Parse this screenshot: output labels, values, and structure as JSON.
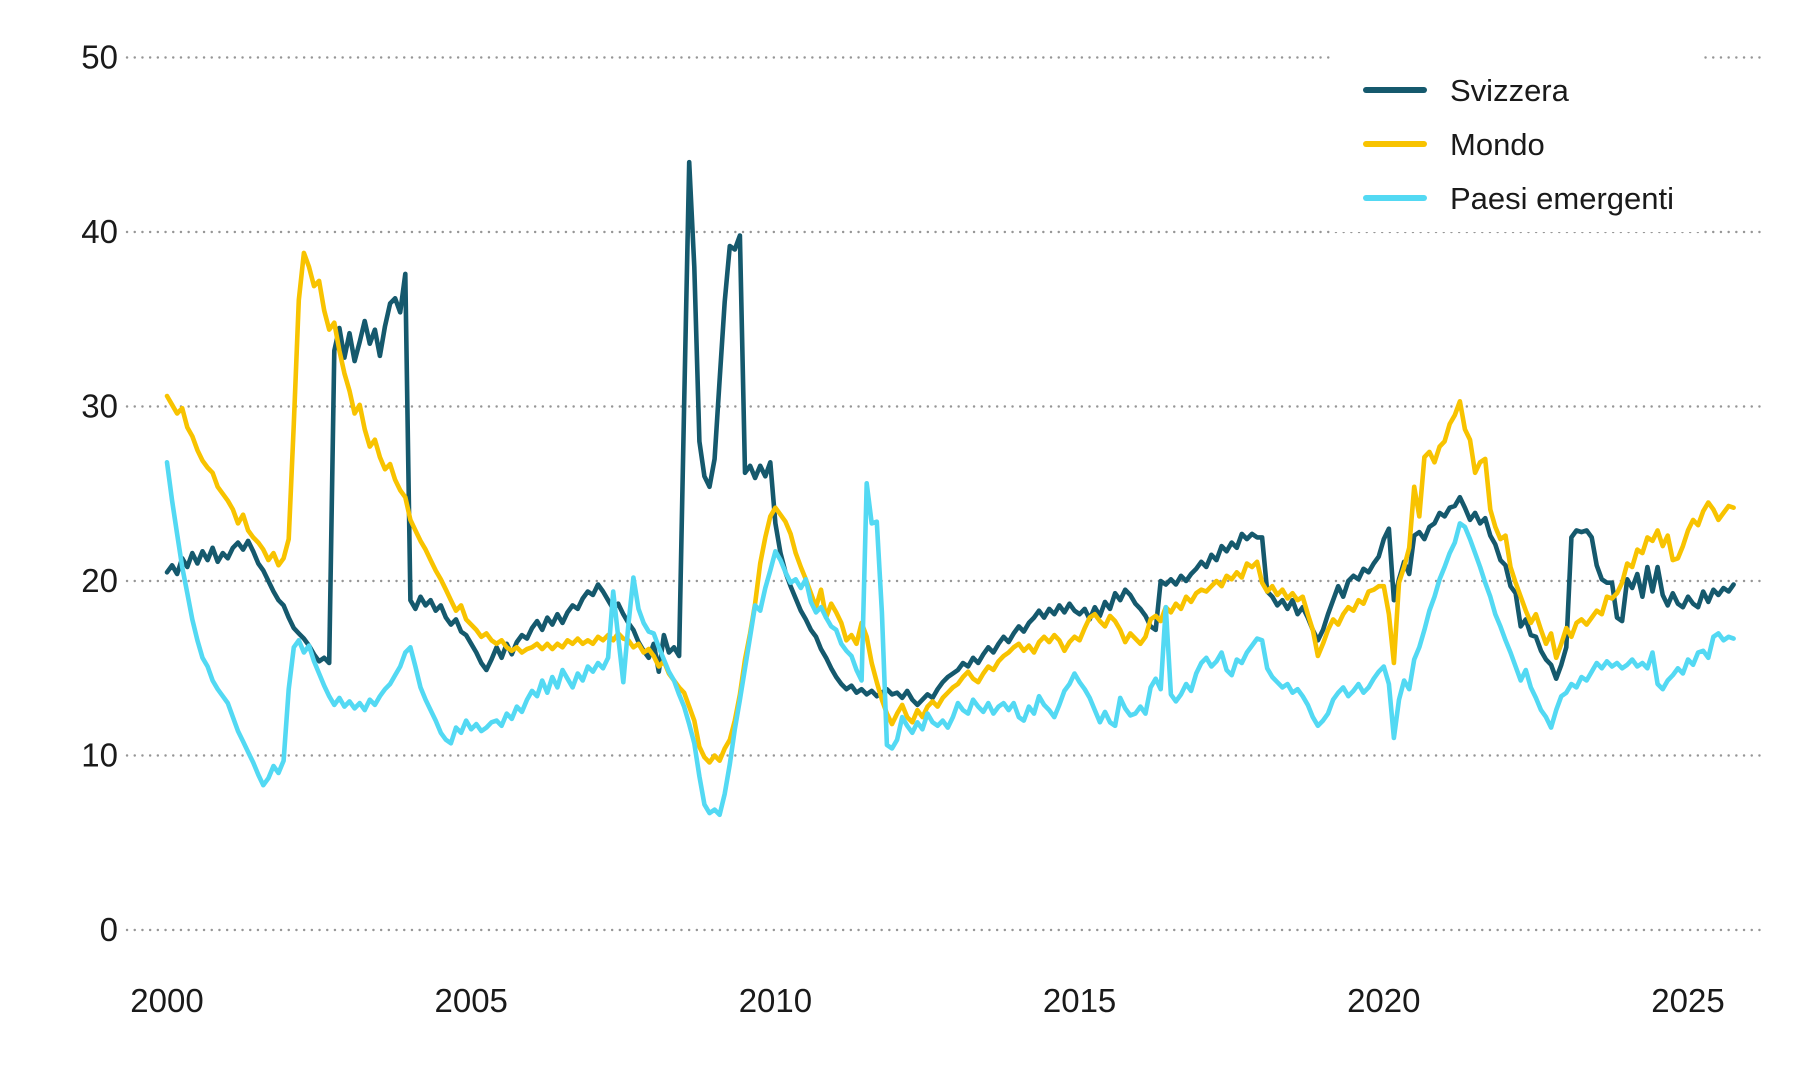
{
  "chart_data": {
    "type": "line",
    "title": "",
    "xlabel": "",
    "ylabel": "",
    "x_start_year": 2000,
    "points_per_year": 12,
    "x_ticks": [
      2000,
      2005,
      2010,
      2015,
      2020,
      2025
    ],
    "y_ticks": [
      0,
      10,
      20,
      30,
      40,
      50
    ],
    "ylim": [
      0,
      50
    ],
    "grid": "dotted-horizontal",
    "grid_color": "#969696",
    "text_color": "#1a1a1a",
    "legend_position": "top-right",
    "series": [
      {
        "name": "Svizzera",
        "color": "#15596d",
        "values": [
          20.5,
          20.9,
          20.4,
          21.3,
          20.8,
          21.6,
          21.0,
          21.7,
          21.2,
          21.9,
          21.1,
          21.6,
          21.3,
          21.9,
          22.2,
          21.8,
          22.3,
          21.7,
          21.0,
          20.6,
          20.0,
          19.4,
          18.9,
          18.6,
          17.9,
          17.3,
          17.0,
          16.7,
          16.3,
          15.8,
          15.4,
          15.6,
          15.3,
          33.2,
          34.5,
          32.8,
          34.2,
          32.6,
          33.7,
          34.9,
          33.6,
          34.4,
          32.9,
          34.6,
          35.9,
          36.2,
          35.4,
          37.6,
          18.9,
          18.4,
          19.1,
          18.6,
          18.9,
          18.3,
          18.6,
          17.9,
          17.5,
          17.8,
          17.1,
          16.9,
          16.4,
          15.9,
          15.3,
          14.9,
          15.5,
          16.2,
          15.6,
          16.4,
          15.8,
          16.5,
          16.9,
          16.7,
          17.3,
          17.7,
          17.2,
          17.9,
          17.5,
          18.1,
          17.6,
          18.2,
          18.6,
          18.4,
          19.0,
          19.4,
          19.2,
          19.8,
          19.4,
          18.9,
          18.4,
          18.7,
          18.1,
          17.6,
          17.2,
          16.5,
          16.0,
          15.6,
          16.4,
          14.8,
          16.9,
          15.9,
          16.2,
          15.7,
          30.0,
          44.0,
          38.0,
          28.0,
          26.0,
          25.4,
          27.0,
          31.5,
          36.0,
          39.2,
          39.0,
          39.8,
          26.2,
          26.6,
          25.9,
          26.6,
          26.0,
          26.8,
          23.3,
          21.6,
          20.5,
          19.7,
          19.0,
          18.3,
          17.8,
          17.2,
          16.8,
          16.1,
          15.6,
          15.0,
          14.5,
          14.1,
          13.8,
          14.0,
          13.6,
          13.8,
          13.5,
          13.7,
          13.4,
          13.6,
          13.8,
          13.5,
          13.6,
          13.3,
          13.7,
          13.2,
          12.9,
          13.2,
          13.5,
          13.3,
          13.8,
          14.2,
          14.5,
          14.7,
          14.9,
          15.3,
          15.1,
          15.6,
          15.3,
          15.8,
          16.2,
          15.9,
          16.4,
          16.8,
          16.5,
          17.0,
          17.4,
          17.1,
          17.6,
          17.9,
          18.3,
          17.9,
          18.4,
          18.1,
          18.6,
          18.2,
          18.7,
          18.3,
          18.1,
          18.4,
          17.8,
          18.5,
          18.0,
          18.8,
          18.4,
          19.3,
          18.9,
          19.5,
          19.2,
          18.7,
          18.4,
          18.0,
          17.4,
          17.2,
          20.0,
          19.8,
          20.1,
          19.8,
          20.3,
          20.0,
          20.4,
          20.7,
          21.1,
          20.8,
          21.5,
          21.2,
          22.0,
          21.7,
          22.2,
          21.9,
          22.7,
          22.4,
          22.7,
          22.5,
          22.5,
          19.4,
          19.1,
          18.6,
          18.9,
          18.4,
          18.9,
          18.1,
          18.5,
          17.9,
          17.2,
          16.6,
          17.2,
          18.1,
          18.9,
          19.7,
          19.1,
          20.0,
          20.3,
          20.1,
          20.7,
          20.5,
          21.0,
          21.4,
          22.4,
          23.0,
          18.9,
          20.1,
          21.1,
          20.4,
          22.6,
          22.8,
          22.4,
          23.1,
          23.3,
          23.9,
          23.7,
          24.2,
          24.3,
          24.8,
          24.2,
          23.5,
          23.9,
          23.3,
          23.6,
          22.6,
          22.1,
          21.2,
          20.9,
          19.7,
          19.3,
          17.4,
          17.8,
          16.9,
          16.8,
          16.0,
          15.5,
          15.2,
          14.4,
          15.2,
          16.2,
          22.5,
          22.9,
          22.8,
          22.9,
          22.5,
          20.9,
          20.1,
          19.9,
          19.9,
          17.9,
          17.7,
          20.1,
          19.6,
          20.4,
          19.1,
          20.8,
          19.4,
          20.8,
          19.2,
          18.6,
          19.3,
          18.7,
          18.5,
          19.1,
          18.7,
          18.5,
          19.4,
          18.8,
          19.5,
          19.2,
          19.6,
          19.4,
          19.8
        ]
      },
      {
        "name": "Mondo",
        "color": "#f8c300",
        "values": [
          30.6,
          30.1,
          29.6,
          29.9,
          28.8,
          28.3,
          27.5,
          26.9,
          26.5,
          26.2,
          25.4,
          25.0,
          24.6,
          24.1,
          23.3,
          23.8,
          22.9,
          22.5,
          22.2,
          21.8,
          21.2,
          21.6,
          20.9,
          21.3,
          22.4,
          29.0,
          36.1,
          38.8,
          38.0,
          36.9,
          37.2,
          35.5,
          34.4,
          34.8,
          33.2,
          31.9,
          30.9,
          29.6,
          30.1,
          28.7,
          27.7,
          28.1,
          27.1,
          26.4,
          26.7,
          25.8,
          25.2,
          24.8,
          23.5,
          22.9,
          22.3,
          21.8,
          21.2,
          20.6,
          20.1,
          19.5,
          18.9,
          18.3,
          18.6,
          17.8,
          17.5,
          17.2,
          16.8,
          17.0,
          16.6,
          16.4,
          16.6,
          16.2,
          16.0,
          16.2,
          15.9,
          16.1,
          16.2,
          16.4,
          16.1,
          16.4,
          16.1,
          16.4,
          16.2,
          16.6,
          16.4,
          16.7,
          16.4,
          16.6,
          16.4,
          16.8,
          16.6,
          16.9,
          16.6,
          17.0,
          16.7,
          16.6,
          16.2,
          16.4,
          15.9,
          16.1,
          15.7,
          15.1,
          15.4,
          14.7,
          14.3,
          13.9,
          13.6,
          12.8,
          12.0,
          10.5,
          9.9,
          9.6,
          10.0,
          9.7,
          10.4,
          10.9,
          12.0,
          13.5,
          15.5,
          17.0,
          18.7,
          21.0,
          22.5,
          23.7,
          24.2,
          23.8,
          23.4,
          22.7,
          21.6,
          20.8,
          20.1,
          19.3,
          18.5,
          19.5,
          17.9,
          18.7,
          18.2,
          17.6,
          16.6,
          16.9,
          16.4,
          17.6,
          16.8,
          15.3,
          14.2,
          13.2,
          12.4,
          11.8,
          12.4,
          12.9,
          12.2,
          11.9,
          12.6,
          12.2,
          12.8,
          13.1,
          12.8,
          13.3,
          13.6,
          13.9,
          14.1,
          14.5,
          14.8,
          14.4,
          14.2,
          14.7,
          15.1,
          14.9,
          15.4,
          15.7,
          15.9,
          16.2,
          16.4,
          16.0,
          16.3,
          15.9,
          16.5,
          16.8,
          16.5,
          16.9,
          16.6,
          16.0,
          16.5,
          16.8,
          16.6,
          17.3,
          17.9,
          18.1,
          17.7,
          17.4,
          18.0,
          17.7,
          17.2,
          16.5,
          17.0,
          16.7,
          16.4,
          16.8,
          17.8,
          18.0,
          17.7,
          18.5,
          18.2,
          18.7,
          18.4,
          19.1,
          18.8,
          19.3,
          19.5,
          19.4,
          19.7,
          20.0,
          19.7,
          20.3,
          20.1,
          20.5,
          20.2,
          21.0,
          20.8,
          21.1,
          19.9,
          19.4,
          19.7,
          19.2,
          19.5,
          19.0,
          19.3,
          18.9,
          19.1,
          18.1,
          17.2,
          15.7,
          16.4,
          17.2,
          17.8,
          17.5,
          18.1,
          18.5,
          18.3,
          18.9,
          18.7,
          19.4,
          19.5,
          19.7,
          19.7,
          18.1,
          15.3,
          19.9,
          20.8,
          21.9,
          25.4,
          23.7,
          27.1,
          27.4,
          26.8,
          27.7,
          28.0,
          29.0,
          29.5,
          30.3,
          28.7,
          28.1,
          26.2,
          26.8,
          27.0,
          24.1,
          23.1,
          22.4,
          22.6,
          20.8,
          19.9,
          19.1,
          18.3,
          17.6,
          18.1,
          17.2,
          16.4,
          17.0,
          15.6,
          16.4,
          17.3,
          16.8,
          17.6,
          17.8,
          17.5,
          17.9,
          18.3,
          18.1,
          19.1,
          19.0,
          19.3,
          19.9,
          21.0,
          20.8,
          21.8,
          21.6,
          22.5,
          22.3,
          22.9,
          22.0,
          22.6,
          21.2,
          21.3,
          22.0,
          22.9,
          23.5,
          23.2,
          24.0,
          24.5,
          24.1,
          23.5,
          23.9,
          24.3,
          24.2
        ]
      },
      {
        "name": "Paesi emergenti",
        "color": "#53d9f3",
        "values": [
          26.8,
          24.6,
          22.7,
          20.8,
          19.3,
          17.8,
          16.6,
          15.6,
          15.1,
          14.3,
          13.8,
          13.4,
          13.0,
          12.2,
          11.4,
          10.8,
          10.2,
          9.6,
          8.9,
          8.3,
          8.7,
          9.4,
          9.0,
          9.7,
          13.8,
          16.2,
          16.6,
          15.9,
          16.3,
          15.4,
          14.7,
          14.0,
          13.4,
          12.9,
          13.3,
          12.8,
          13.1,
          12.7,
          13.0,
          12.6,
          13.2,
          12.9,
          13.4,
          13.8,
          14.1,
          14.6,
          15.1,
          15.9,
          16.2,
          15.1,
          13.9,
          13.2,
          12.6,
          12.0,
          11.3,
          10.9,
          10.7,
          11.6,
          11.3,
          12.0,
          11.5,
          11.8,
          11.4,
          11.6,
          11.9,
          12.0,
          11.7,
          12.4,
          12.1,
          12.8,
          12.5,
          13.2,
          13.7,
          13.4,
          14.3,
          13.6,
          14.5,
          13.9,
          14.9,
          14.4,
          13.9,
          14.7,
          14.3,
          15.1,
          14.8,
          15.3,
          15.0,
          15.6,
          19.4,
          16.8,
          14.2,
          17.5,
          20.2,
          18.4,
          17.6,
          17.1,
          17.0,
          16.2,
          15.5,
          14.8,
          14.3,
          13.5,
          12.8,
          11.8,
          10.7,
          8.8,
          7.2,
          6.7,
          6.9,
          6.6,
          7.8,
          9.5,
          11.5,
          13.2,
          15.0,
          16.8,
          18.6,
          18.3,
          19.6,
          20.6,
          21.7,
          21.2,
          20.5,
          19.9,
          20.1,
          19.6,
          20.1,
          18.8,
          18.2,
          18.5,
          17.9,
          17.4,
          17.2,
          16.4,
          16.0,
          15.7,
          14.9,
          14.3,
          25.6,
          23.3,
          23.4,
          18.2,
          10.6,
          10.4,
          10.9,
          12.2,
          11.7,
          11.3,
          11.9,
          11.5,
          12.4,
          11.9,
          11.7,
          12.0,
          11.6,
          12.2,
          13.0,
          12.6,
          12.4,
          13.2,
          12.8,
          12.5,
          13.0,
          12.4,
          12.8,
          13.0,
          12.6,
          13.0,
          12.2,
          12.0,
          12.8,
          12.4,
          13.4,
          12.9,
          12.6,
          12.2,
          12.9,
          13.7,
          14.1,
          14.7,
          14.2,
          13.8,
          13.3,
          12.6,
          11.9,
          12.5,
          11.9,
          11.7,
          13.3,
          12.7,
          12.3,
          12.4,
          12.8,
          12.4,
          13.9,
          14.4,
          13.8,
          18.5,
          13.5,
          13.1,
          13.5,
          14.1,
          13.7,
          14.7,
          15.3,
          15.6,
          15.1,
          15.4,
          15.9,
          14.9,
          14.6,
          15.5,
          15.3,
          15.9,
          16.3,
          16.7,
          16.6,
          15.0,
          14.5,
          14.2,
          13.9,
          14.1,
          13.6,
          13.8,
          13.4,
          12.9,
          12.2,
          11.7,
          12.0,
          12.4,
          13.2,
          13.6,
          13.9,
          13.4,
          13.7,
          14.1,
          13.6,
          13.9,
          14.4,
          14.8,
          15.1,
          14.1,
          11.0,
          13.2,
          14.3,
          13.8,
          15.5,
          16.2,
          17.2,
          18.3,
          19.1,
          20.1,
          20.8,
          21.6,
          22.2,
          23.3,
          23.1,
          22.4,
          21.6,
          20.8,
          19.9,
          19.1,
          18.1,
          17.4,
          16.6,
          15.9,
          15.1,
          14.3,
          14.9,
          13.9,
          13.3,
          12.6,
          12.2,
          11.6,
          12.6,
          13.4,
          13.6,
          14.1,
          13.9,
          14.5,
          14.3,
          14.8,
          15.3,
          15.0,
          15.4,
          15.1,
          15.3,
          15.0,
          15.2,
          15.5,
          15.1,
          15.3,
          15.0,
          15.9,
          14.1,
          13.8,
          14.3,
          14.6,
          15.0,
          14.7,
          15.5,
          15.2,
          15.9,
          16.0,
          15.6,
          16.8,
          17.0,
          16.6,
          16.8,
          16.7
        ]
      }
    ]
  }
}
